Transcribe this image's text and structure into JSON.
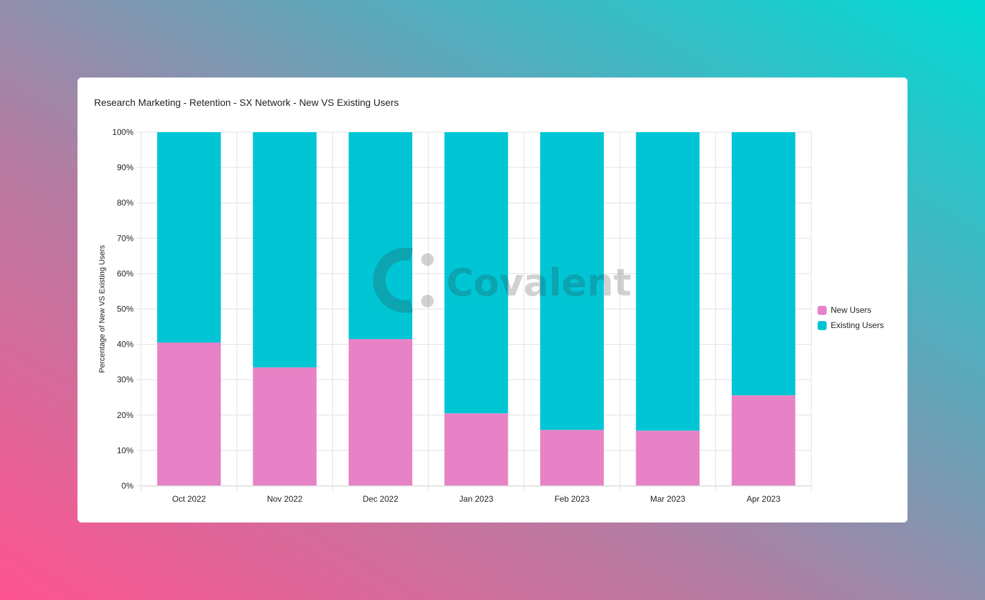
{
  "title": "Research Marketing - Retention - SX Network - New VS Existing Users",
  "watermark": "Covalent",
  "colors": {
    "new_users": "#e882c7",
    "existing_users": "#00c5d4"
  },
  "chart_data": {
    "type": "bar",
    "stacked": true,
    "title": "Research Marketing - Retention - SX Network - New VS Existing Users",
    "xlabel": "",
    "ylabel": "Percentage of New VS Existing Users",
    "ylim": [
      0,
      100
    ],
    "yticks": [
      "0%",
      "10%",
      "20%",
      "30%",
      "40%",
      "50%",
      "60%",
      "70%",
      "80%",
      "90%",
      "100%"
    ],
    "categories": [
      "Oct 2022",
      "Nov 2022",
      "Dec 2022",
      "Jan 2023",
      "Feb 2023",
      "Mar 2023",
      "Apr 2023"
    ],
    "series": [
      {
        "name": "New Users",
        "values": [
          40.5,
          33.5,
          41.5,
          20.5,
          15.8,
          15.6,
          25.6
        ]
      },
      {
        "name": "Existing Users",
        "values": [
          59.5,
          66.5,
          58.5,
          79.5,
          84.2,
          84.4,
          74.4
        ]
      }
    ],
    "grid": true,
    "legend": "right"
  }
}
